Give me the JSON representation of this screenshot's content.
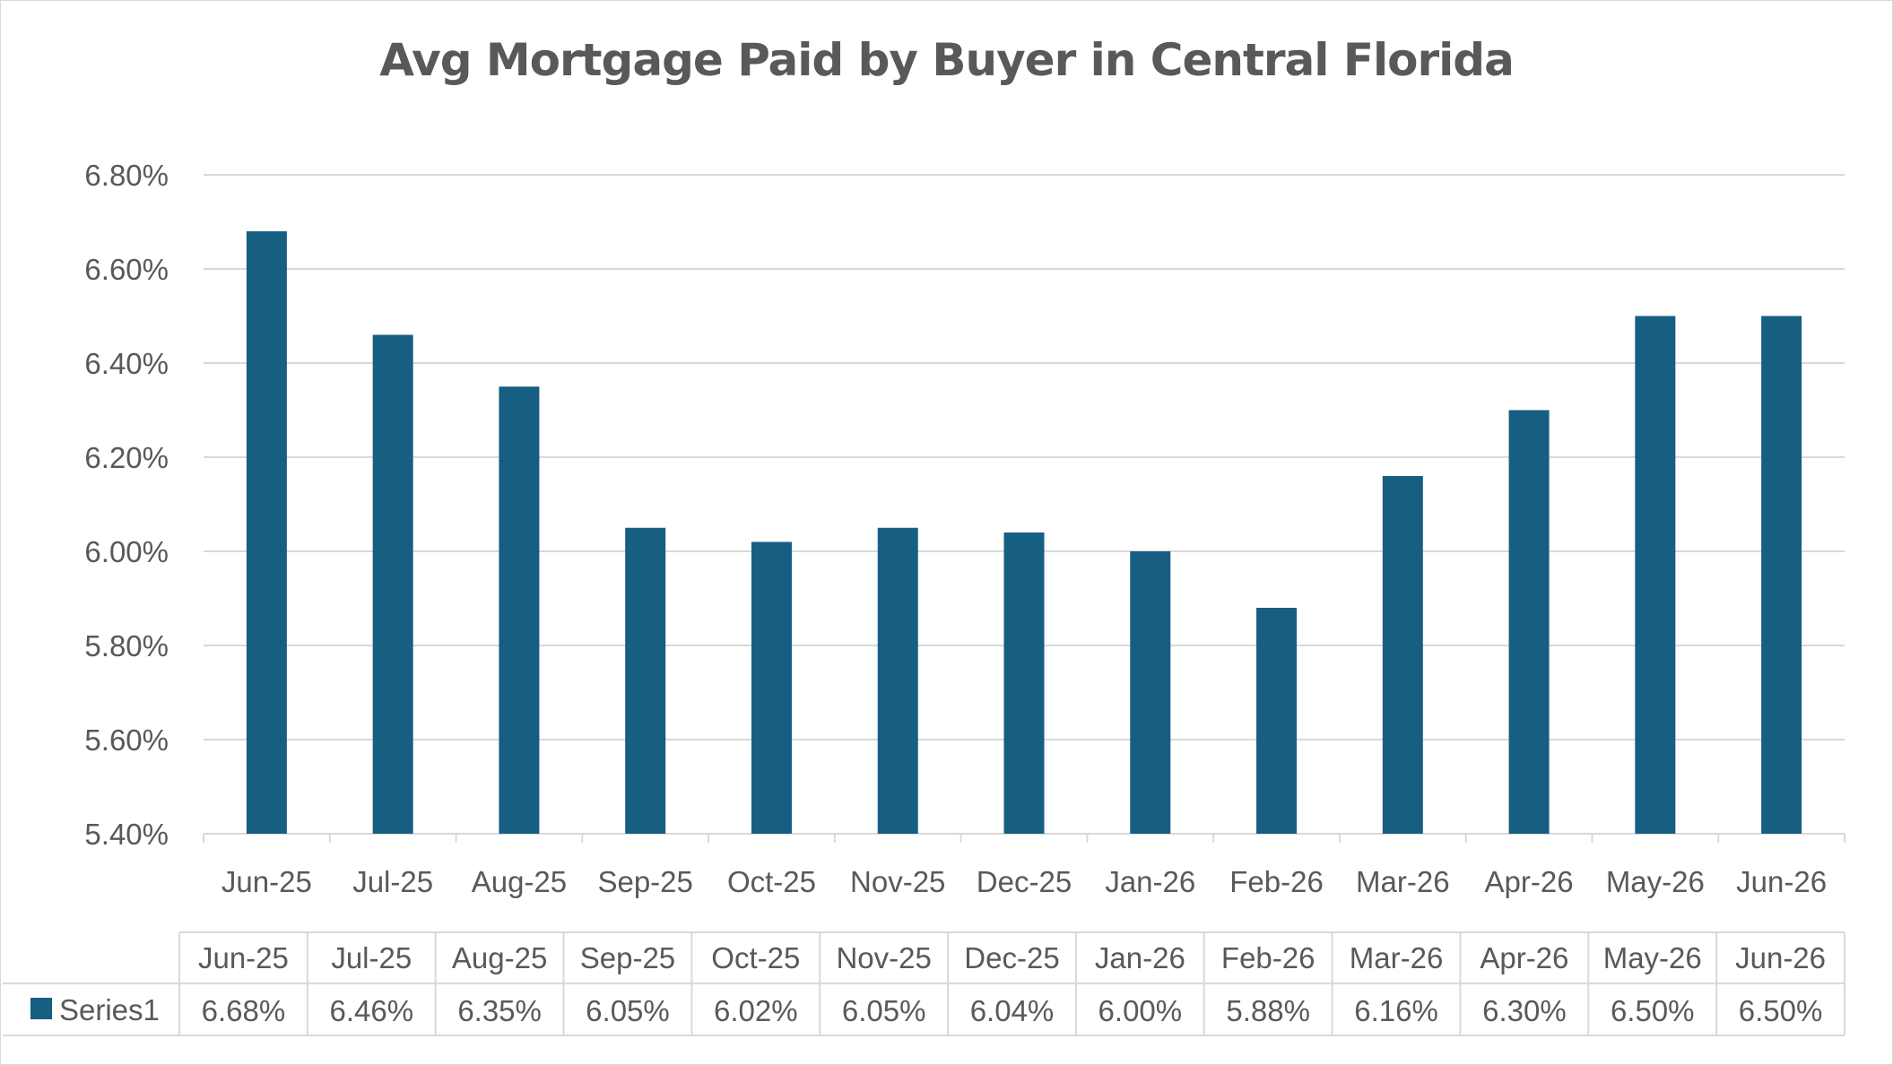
{
  "chart_data": {
    "type": "bar",
    "title": "Avg Mortgage Paid by Buyer in Central Florida",
    "categories": [
      "Jun-25",
      "Jul-25",
      "Aug-25",
      "Sep-25",
      "Oct-25",
      "Nov-25",
      "Dec-25",
      "Jan-26",
      "Feb-26",
      "Mar-26",
      "Apr-26",
      "May-26",
      "Jun-26"
    ],
    "series": [
      {
        "name": "Series1",
        "values": [
          6.68,
          6.46,
          6.35,
          6.05,
          6.02,
          6.05,
          6.04,
          6.0,
          5.88,
          6.16,
          6.3,
          6.5,
          6.5
        ],
        "labels": [
          "6.68%",
          "6.46%",
          "6.35%",
          "6.05%",
          "6.02%",
          "6.05%",
          "6.04%",
          "6.00%",
          "5.88%",
          "6.16%",
          "6.30%",
          "6.50%",
          "6.50%"
        ],
        "color": "#165e82"
      }
    ],
    "ylim": [
      5.4,
      6.8
    ],
    "yticks": [
      5.4,
      5.6,
      5.8,
      6.0,
      6.2,
      6.4,
      6.6,
      6.8
    ],
    "ytick_labels": [
      "5.40%",
      "5.60%",
      "5.80%",
      "6.00%",
      "6.20%",
      "6.40%",
      "6.60%",
      "6.80%"
    ],
    "grid": true,
    "data_table": true,
    "legend_position": "data-table-row",
    "gridline_color": "#d9d9d9",
    "text_color": "#595959"
  }
}
